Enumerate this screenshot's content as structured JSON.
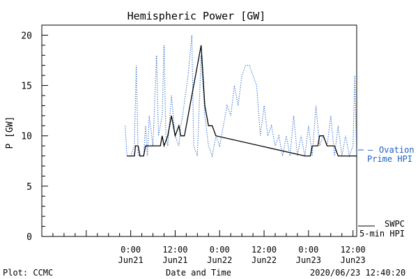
{
  "chart_data": {
    "type": "line",
    "title": "Hemispheric Power [GW]",
    "ylabel": "P [GW]",
    "xlabel": "Date and Time",
    "ylim": [
      0,
      21
    ],
    "xlim_hours": [
      -24,
      61
    ],
    "yticks": [
      0,
      5,
      10,
      15,
      20
    ],
    "xticks": [
      {
        "hour": 0,
        "label1": "0:00",
        "label2": "Jun21"
      },
      {
        "hour": 12,
        "label1": "12:00",
        "label2": "Jun21"
      },
      {
        "hour": 24,
        "label1": "0:00",
        "label2": "Jun22"
      },
      {
        "hour": 36,
        "label1": "12:00",
        "label2": "Jun22"
      },
      {
        "hour": 48,
        "label1": "0:00",
        "label2": "Jun23"
      },
      {
        "hour": 60,
        "label1": "12:00",
        "label2": "Jun23"
      }
    ],
    "series": [
      {
        "name": "SWPC 5-min HPI",
        "label_line1": "SWPC",
        "label_line2": "5-min HPI",
        "color": "#000000",
        "style": "solid",
        "points": [
          [
            -1.0,
            8
          ],
          [
            1.0,
            8
          ],
          [
            1.3,
            9
          ],
          [
            2.0,
            9
          ],
          [
            2.5,
            8
          ],
          [
            3.5,
            8
          ],
          [
            4.0,
            9
          ],
          [
            8.0,
            9
          ],
          [
            8.5,
            10
          ],
          [
            9.0,
            9
          ],
          [
            10.0,
            10
          ],
          [
            10.5,
            11
          ],
          [
            11.0,
            12
          ],
          [
            11.5,
            11
          ],
          [
            12.0,
            10
          ],
          [
            13.0,
            11
          ],
          [
            13.5,
            10
          ],
          [
            14.5,
            10
          ],
          [
            15.0,
            11
          ],
          [
            16.0,
            13
          ],
          [
            17.5,
            16
          ],
          [
            19.0,
            19
          ],
          [
            20.0,
            13
          ],
          [
            21.0,
            11
          ],
          [
            22.0,
            11
          ],
          [
            23.0,
            10
          ],
          [
            47.0,
            8
          ],
          [
            48.5,
            8
          ],
          [
            49.0,
            9
          ],
          [
            50.5,
            9
          ],
          [
            51.0,
            10
          ],
          [
            52.0,
            10
          ],
          [
            53.0,
            9
          ],
          [
            55.0,
            9
          ],
          [
            56.0,
            8
          ],
          [
            58.0,
            8
          ],
          [
            61.0,
            8
          ]
        ]
      },
      {
        "name": "Ovation Prime HPI",
        "label_line1": "Ovation",
        "label_line2": "Prime HPI",
        "color": "#2060c0",
        "style": "dotted",
        "points": [
          [
            -1.5,
            11
          ],
          [
            -1.0,
            8
          ],
          [
            0.0,
            8
          ],
          [
            1.0,
            9
          ],
          [
            1.5,
            17
          ],
          [
            2.0,
            8
          ],
          [
            3.5,
            8
          ],
          [
            4.0,
            11
          ],
          [
            4.5,
            8
          ],
          [
            5.0,
            12
          ],
          [
            6.0,
            9
          ],
          [
            7.0,
            18
          ],
          [
            7.5,
            10
          ],
          [
            8.0,
            11
          ],
          [
            8.5,
            12
          ],
          [
            9.0,
            19
          ],
          [
            9.5,
            10
          ],
          [
            10.0,
            9
          ],
          [
            11.0,
            14
          ],
          [
            12.0,
            10
          ],
          [
            13.0,
            9
          ],
          [
            13.5,
            11
          ],
          [
            14.0,
            12
          ],
          [
            15.5,
            16
          ],
          [
            16.5,
            20
          ],
          [
            17.0,
            9
          ],
          [
            18.0,
            8
          ],
          [
            19.0,
            18
          ],
          [
            20.0,
            12
          ],
          [
            21.0,
            9
          ],
          [
            22.0,
            8
          ],
          [
            23.0,
            10
          ],
          [
            24.0,
            9
          ],
          [
            25.0,
            11
          ],
          [
            26.0,
            13
          ],
          [
            27.0,
            12
          ],
          [
            28.0,
            15
          ],
          [
            29.0,
            13
          ],
          [
            30.0,
            16
          ],
          [
            31.0,
            17
          ],
          [
            32.0,
            17
          ],
          [
            33.0,
            16
          ],
          [
            34.0,
            15
          ],
          [
            35.0,
            10
          ],
          [
            36.0,
            13
          ],
          [
            37.0,
            10
          ],
          [
            38.0,
            11
          ],
          [
            39.0,
            9
          ],
          [
            40.0,
            10
          ],
          [
            41.0,
            8
          ],
          [
            42.0,
            10
          ],
          [
            43.0,
            8
          ],
          [
            44.0,
            12
          ],
          [
            45.0,
            8
          ],
          [
            46.0,
            10
          ],
          [
            47.0,
            8
          ],
          [
            48.0,
            11
          ],
          [
            49.0,
            8
          ],
          [
            50.0,
            13
          ],
          [
            51.0,
            9
          ],
          [
            52.0,
            10
          ],
          [
            53.0,
            9
          ],
          [
            54.0,
            12
          ],
          [
            55.0,
            8
          ],
          [
            56.0,
            11
          ],
          [
            57.0,
            8
          ],
          [
            58.0,
            10
          ],
          [
            59.0,
            8
          ],
          [
            60.0,
            9
          ],
          [
            60.5,
            16
          ],
          [
            61.0,
            8
          ]
        ]
      }
    ]
  },
  "footer": {
    "left": "Plot: CCMC",
    "center": "Date and Time",
    "right": "2020/06/23 12:40:20"
  }
}
